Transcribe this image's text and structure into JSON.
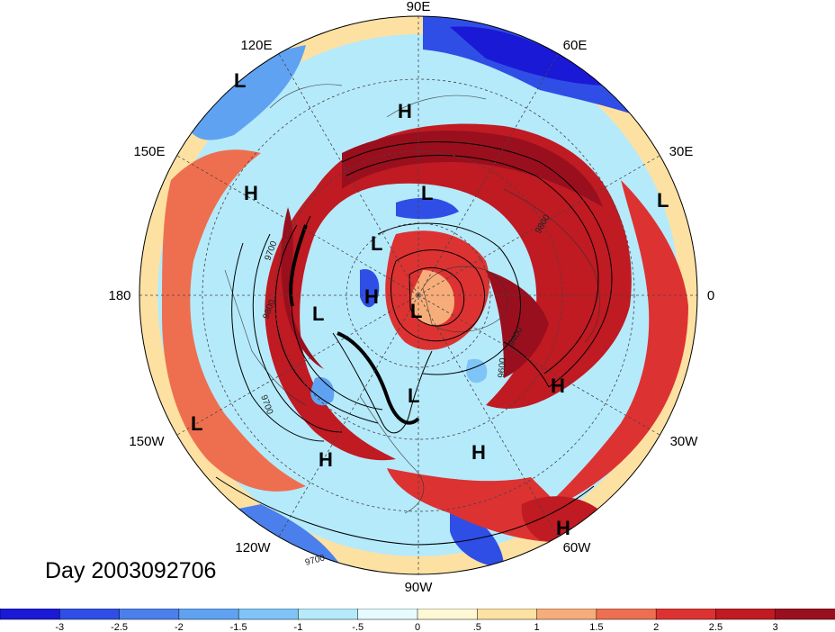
{
  "title_text": "Day 2003092706",
  "lon_labels": [
    "90E",
    "60E",
    "30E",
    "0",
    "30W",
    "60W",
    "90W",
    "120W",
    "150W",
    "180",
    "150E",
    "120E"
  ],
  "pressure_systems": [
    {
      "type": "L",
      "lon_label": "120E area"
    },
    {
      "type": "H",
      "lon_label": "north"
    },
    {
      "type": "H",
      "lon_label": "150E area"
    },
    {
      "type": "L",
      "lon_label": "center-north"
    },
    {
      "type": "L",
      "lon_label": "30E area"
    },
    {
      "type": "L",
      "lon_label": "center"
    },
    {
      "type": "H",
      "lon_label": "center"
    },
    {
      "type": "L",
      "lon_label": "center-west"
    },
    {
      "type": "L",
      "lon_label": "pole"
    },
    {
      "type": "L",
      "lon_label": "center-south"
    },
    {
      "type": "H",
      "lon_label": "east"
    },
    {
      "type": "L",
      "lon_label": "150W area"
    },
    {
      "type": "H",
      "lon_label": "120W area"
    },
    {
      "type": "H",
      "lon_label": "south-east"
    },
    {
      "type": "H",
      "lon_label": "60W area"
    }
  ],
  "contour_labels": [
    "9700",
    "9800",
    "9700",
    "9700",
    "9800",
    "9400",
    "9600"
  ],
  "colorbar": {
    "ticks": [
      "-3",
      "-2.5",
      "-2",
      "-1.5",
      "-1",
      "-.5",
      "0",
      ".5",
      "1",
      "1.5",
      "2",
      "2.5",
      "3"
    ],
    "colors": [
      "#1a19d6",
      "#2f4ee6",
      "#4a7fec",
      "#5fa2f2",
      "#7fc4f7",
      "#b5eafb",
      "#e6fbfd",
      "#fff8d4",
      "#fde1a2",
      "#f7ad7a",
      "#ee6f50",
      "#dd3232",
      "#c01a22",
      "#9a0f1e"
    ]
  }
}
